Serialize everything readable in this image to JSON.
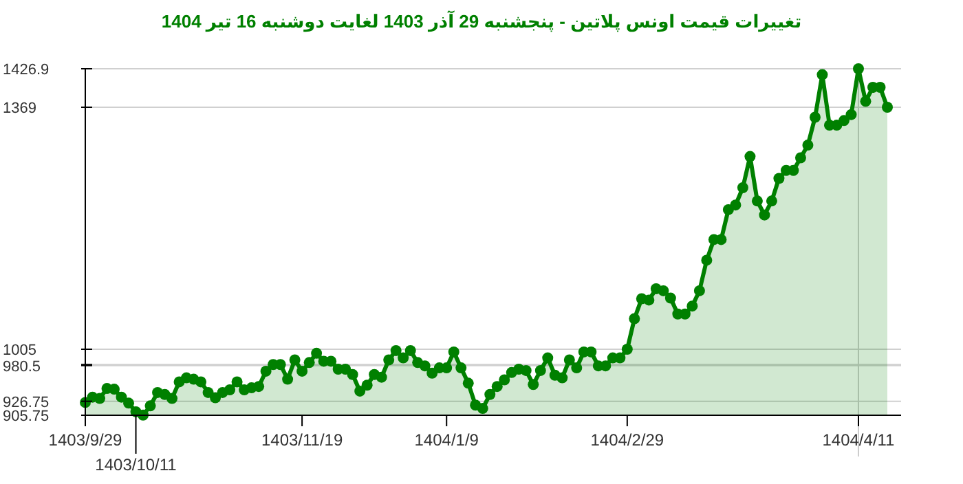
{
  "chart_data": {
    "type": "area",
    "title": "تغییرات قیمت اونس پلاتین - پنجشنبه  29 آذر 1403 لغایت  دوشنبه  16 تیر 1404",
    "categories": [
      "1403/9/29",
      null,
      null,
      null,
      null,
      null,
      null,
      "1403/10/11",
      null,
      null,
      null,
      null,
      null,
      null,
      null,
      null,
      null,
      null,
      null,
      null,
      null,
      null,
      null,
      null,
      null,
      null,
      null,
      null,
      null,
      null,
      "1403/11/19",
      null,
      null,
      null,
      null,
      null,
      null,
      null,
      null,
      null,
      null,
      null,
      null,
      null,
      null,
      null,
      null,
      null,
      null,
      null,
      "1404/1/9",
      null,
      null,
      null,
      null,
      null,
      null,
      null,
      null,
      null,
      null,
      null,
      null,
      null,
      null,
      null,
      null,
      null,
      null,
      null,
      null,
      null,
      null,
      null,
      null,
      "1404/2/29",
      null,
      null,
      null,
      null,
      null,
      null,
      null,
      null,
      null,
      null,
      null,
      null,
      null,
      null,
      null,
      null,
      null,
      null,
      null,
      null,
      null,
      null,
      null,
      null,
      null,
      null,
      null,
      null,
      null,
      null,
      null,
      "1404/4/11",
      null,
      null,
      null,
      null
    ],
    "series": [
      {
        "color": "#008000",
        "values": [
          925,
          933,
          931,
          946,
          945,
          933,
          924,
          911,
          906,
          920,
          940,
          937,
          931,
          956,
          962,
          960,
          956,
          940,
          932,
          940,
          944,
          956,
          944,
          947,
          949,
          972,
          982,
          982,
          960,
          989,
          972,
          985,
          999,
          987,
          987,
          975,
          975,
          967,
          942,
          951,
          967,
          963,
          989,
          1003,
          992,
          1003,
          985,
          980,
          969,
          977,
          977,
          1001,
          977,
          954,
          921,
          916,
          937,
          949,
          959,
          970,
          975,
          973,
          952,
          973,
          992,
          966,
          962,
          989,
          977,
          1001,
          1001,
          980,
          980,
          992,
          992,
          1005,
          1051,
          1081,
          1079,
          1096,
          1093,
          1082,
          1058,
          1058,
          1070,
          1093,
          1139,
          1170,
          1170,
          1215,
          1222,
          1248,
          1295,
          1228,
          1207,
          1228,
          1262,
          1274,
          1274,
          1293,
          1312,
          1354,
          1418,
          1342,
          1342,
          1349,
          1358,
          1426.9,
          1378,
          1399,
          1399,
          1369
        ]
      }
    ],
    "ylim": [
      905.75,
      1426.9
    ],
    "yticks": [
      905.75,
      926.75,
      980.5,
      {
        "value": 982,
        "label": null
      },
      1005,
      1369,
      1426.9
    ],
    "ref_lines": [
      {
        "axis": "x",
        "value": "1404/4/11",
        "color": "#cccccc"
      }
    ],
    "grid": "y",
    "marker": "circle",
    "line_style": "solid"
  }
}
